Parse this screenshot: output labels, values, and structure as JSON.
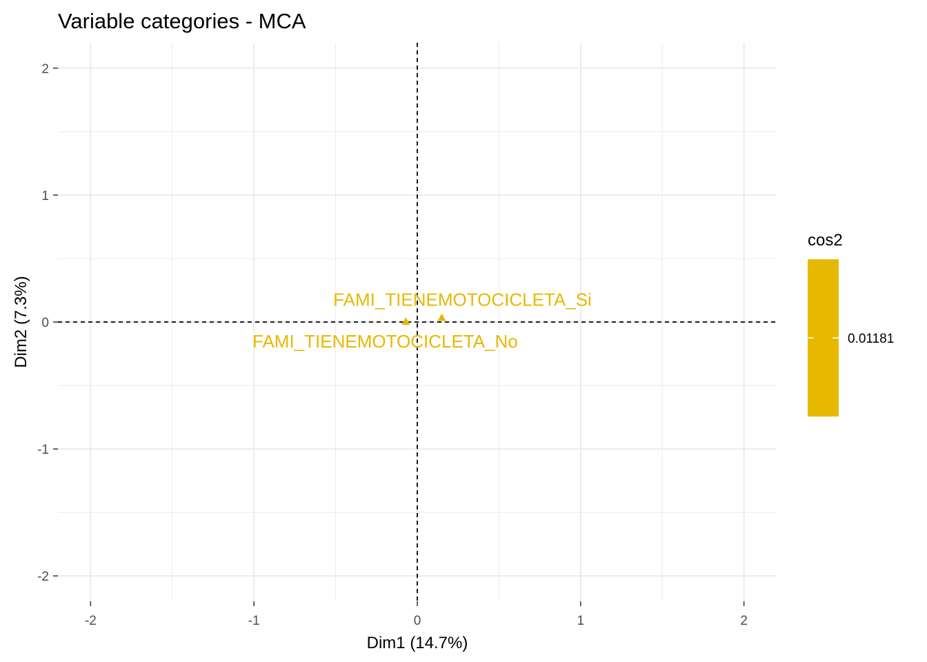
{
  "chart_data": {
    "type": "scatter",
    "title": "Variable categories - MCA",
    "xlabel": "Dim1 (14.7%)",
    "ylabel": "Dim2 (7.3%)",
    "xlim": [
      -2.2,
      2.2
    ],
    "ylim": [
      -2.2,
      2.2
    ],
    "x_ticks": [
      -2,
      -1,
      0,
      1,
      2
    ],
    "y_ticks": [
      -2,
      -1,
      0,
      1,
      2
    ],
    "grid": true,
    "reference_lines": {
      "x": 0,
      "y": 0,
      "style": "dashed"
    },
    "marker": "triangle",
    "points": [
      {
        "label": "FAMI_TIENEMOTOCICLETA_Si",
        "x": 0.15,
        "y": 0.03,
        "cos2": 0.01181
      },
      {
        "label": "FAMI_TIENEMOTOCICLETA_No",
        "x": -0.07,
        "y": 0.0,
        "cos2": 0.01181
      }
    ],
    "legend": {
      "title": "cos2",
      "position": "right",
      "labels": [
        "0.01181"
      ],
      "color": "#E7B800"
    }
  }
}
